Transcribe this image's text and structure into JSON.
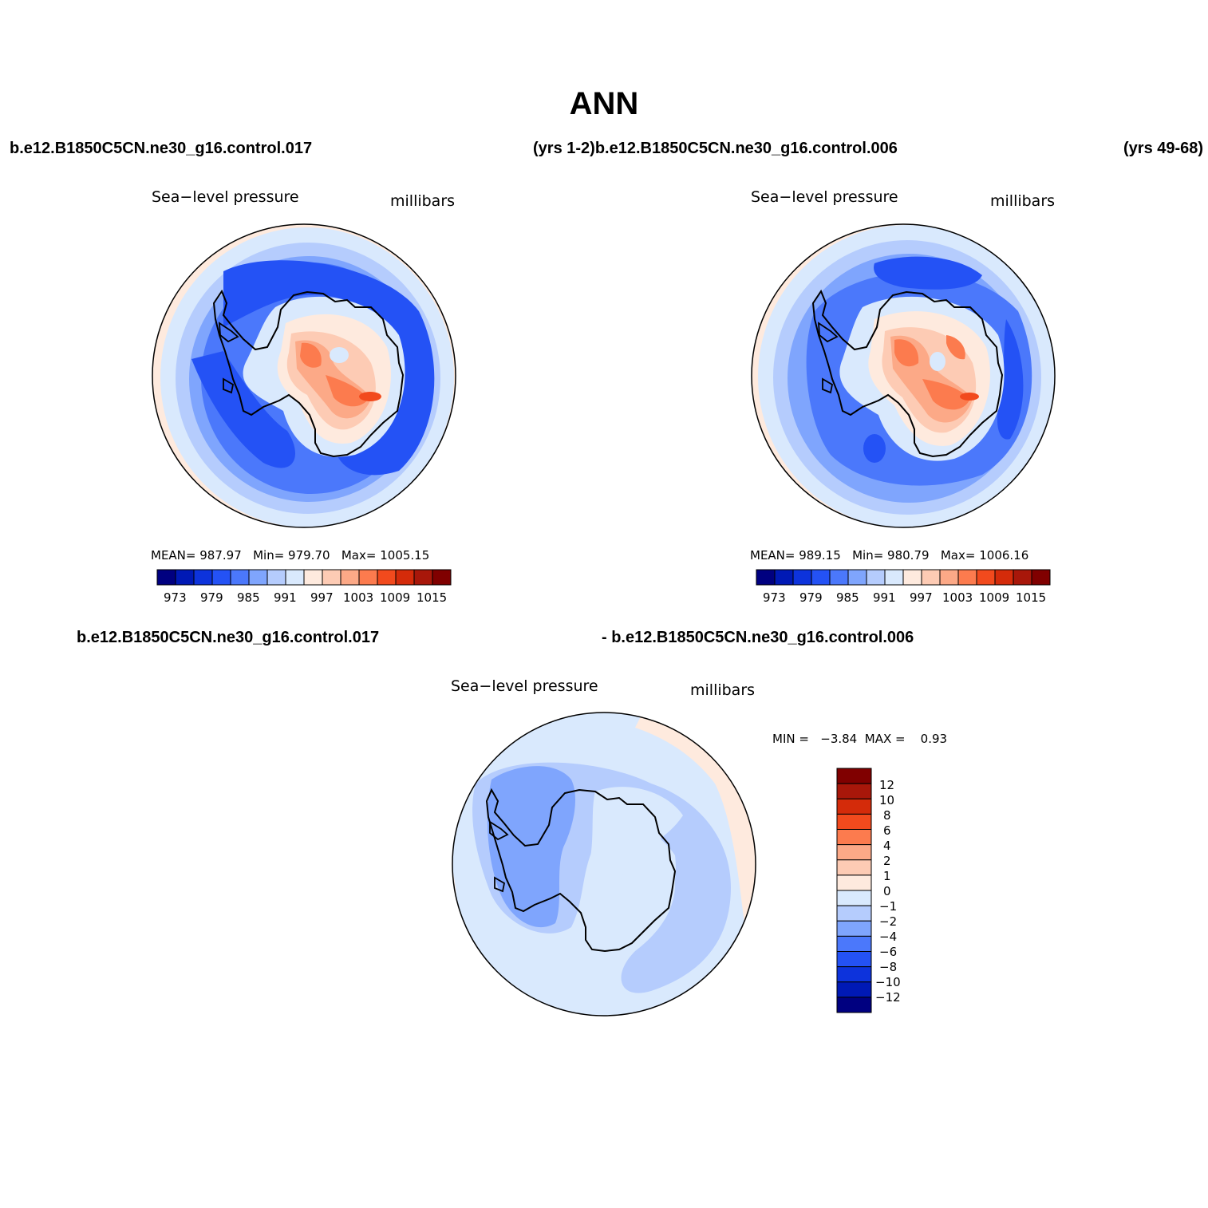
{
  "title": "ANN",
  "top_header": {
    "case_left": "b.e12.B1850C5CN.ne30_g16.control.017",
    "case_mid": "(yrs 1-2)b.e12.B1850C5CN.ne30_g16.control.006",
    "case_right": "(yrs 49-68)"
  },
  "bottom_header": {
    "case_left": "b.e12.B1850C5CN.ne30_g16.control.017",
    "case_right": "- b.e12.B1850C5CN.ne30_g16.control.006"
  },
  "panels": [
    {
      "id": "case1",
      "variable": "Sea−level pressure",
      "units": "millibars",
      "stats": {
        "mean_label": "MEAN=",
        "mean": "987.97",
        "min_label": "Min=",
        "min": "979.70",
        "max_label": "Max=",
        "max": "1005.15"
      },
      "colorbar_ticks": [
        "973",
        "979",
        "985",
        "991",
        "997",
        "1003",
        "1009",
        "1015"
      ]
    },
    {
      "id": "case2",
      "variable": "Sea−level pressure",
      "units": "millibars",
      "stats": {
        "mean_label": "MEAN=",
        "mean": "989.15",
        "min_label": "Min=",
        "min": "980.79",
        "max_label": "Max=",
        "max": "1006.16"
      },
      "colorbar_ticks": [
        "973",
        "979",
        "985",
        "991",
        "997",
        "1003",
        "1009",
        "1015"
      ]
    },
    {
      "id": "difference",
      "variable": "Sea−level pressure",
      "units": "millibars",
      "stats": {
        "min_label": "MIN =",
        "min": "−3.84",
        "max_label": "MAX =",
        "max": "0.93"
      },
      "colorbar_ticks": [
        "12",
        "10",
        "8",
        "6",
        "4",
        "2",
        "1",
        "0",
        "−1",
        "−2",
        "−4",
        "−6",
        "−8",
        "−10",
        "−12"
      ]
    }
  ],
  "palettes": {
    "mean_levels": [
      "#000080",
      "#0019b5",
      "#0d33dc",
      "#2452f5",
      "#4b78fb",
      "#7fa5fd",
      "#b5ccfd",
      "#d9e9fd",
      "#feeade",
      "#fdcbb4",
      "#fca987",
      "#fc7b4e",
      "#f24a1d",
      "#d42b0a",
      "#a8170a",
      "#800000"
    ],
    "diff_levels": [
      "#800000",
      "#a8170a",
      "#d42b0a",
      "#f24a1d",
      "#fc7b4e",
      "#fca987",
      "#fdcbb4",
      "#feeade",
      "#d9e9fd",
      "#b5ccfd",
      "#7fa5fd",
      "#4b78fb",
      "#2452f5",
      "#0d33dc",
      "#0019b5",
      "#000080"
    ]
  }
}
